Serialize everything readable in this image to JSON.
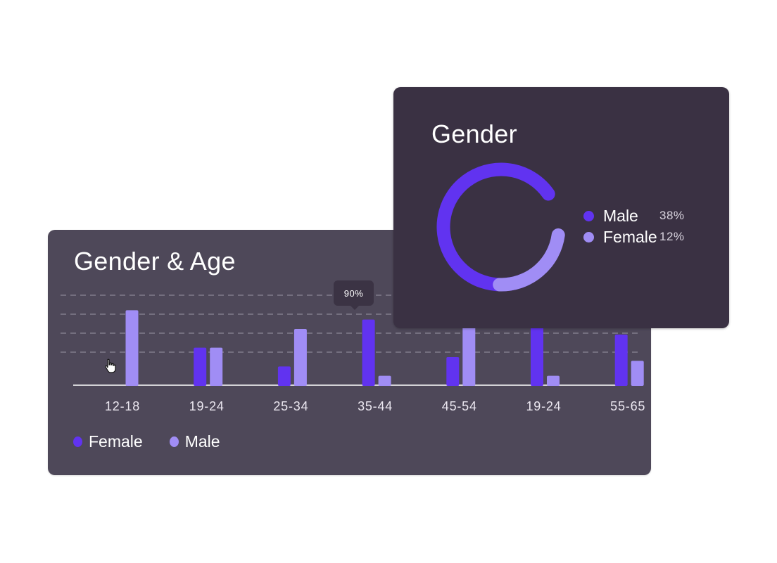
{
  "colors": {
    "female": "#6133f0",
    "male": "#a08df5",
    "axis": "#ffffff",
    "grid": "#8c8696"
  },
  "age_card": {
    "title": "Gender & Age",
    "tooltip": "90%",
    "legend": [
      {
        "label": "Female",
        "color": "#6133f0"
      },
      {
        "label": "Male",
        "color": "#a08df5"
      }
    ]
  },
  "gender_card": {
    "title": "Gender",
    "legend": [
      {
        "label": "Male",
        "value": "38%",
        "color": "#6133f0"
      },
      {
        "label": "Female",
        "value": "12%",
        "color": "#a08df5"
      }
    ]
  },
  "chart_data": [
    {
      "type": "bar",
      "title": "Gender & Age",
      "categories": [
        "12-18",
        "19-24",
        "25-34",
        "35-44",
        "45-54",
        "19-24",
        "55-65"
      ],
      "series": [
        {
          "name": "Female",
          "values": [
            0,
            20,
            10,
            35,
            15,
            43,
            27
          ]
        },
        {
          "name": "Male",
          "values": [
            40,
            20,
            30,
            5,
            43,
            5,
            13
          ]
        }
      ],
      "ylim": [
        0,
        48
      ],
      "grid": true,
      "legend": "bottom-left",
      "annotation": "90%"
    },
    {
      "type": "pie",
      "title": "Gender",
      "categories": [
        "Male",
        "Female"
      ],
      "values": [
        38,
        12
      ],
      "legend": "right"
    }
  ]
}
